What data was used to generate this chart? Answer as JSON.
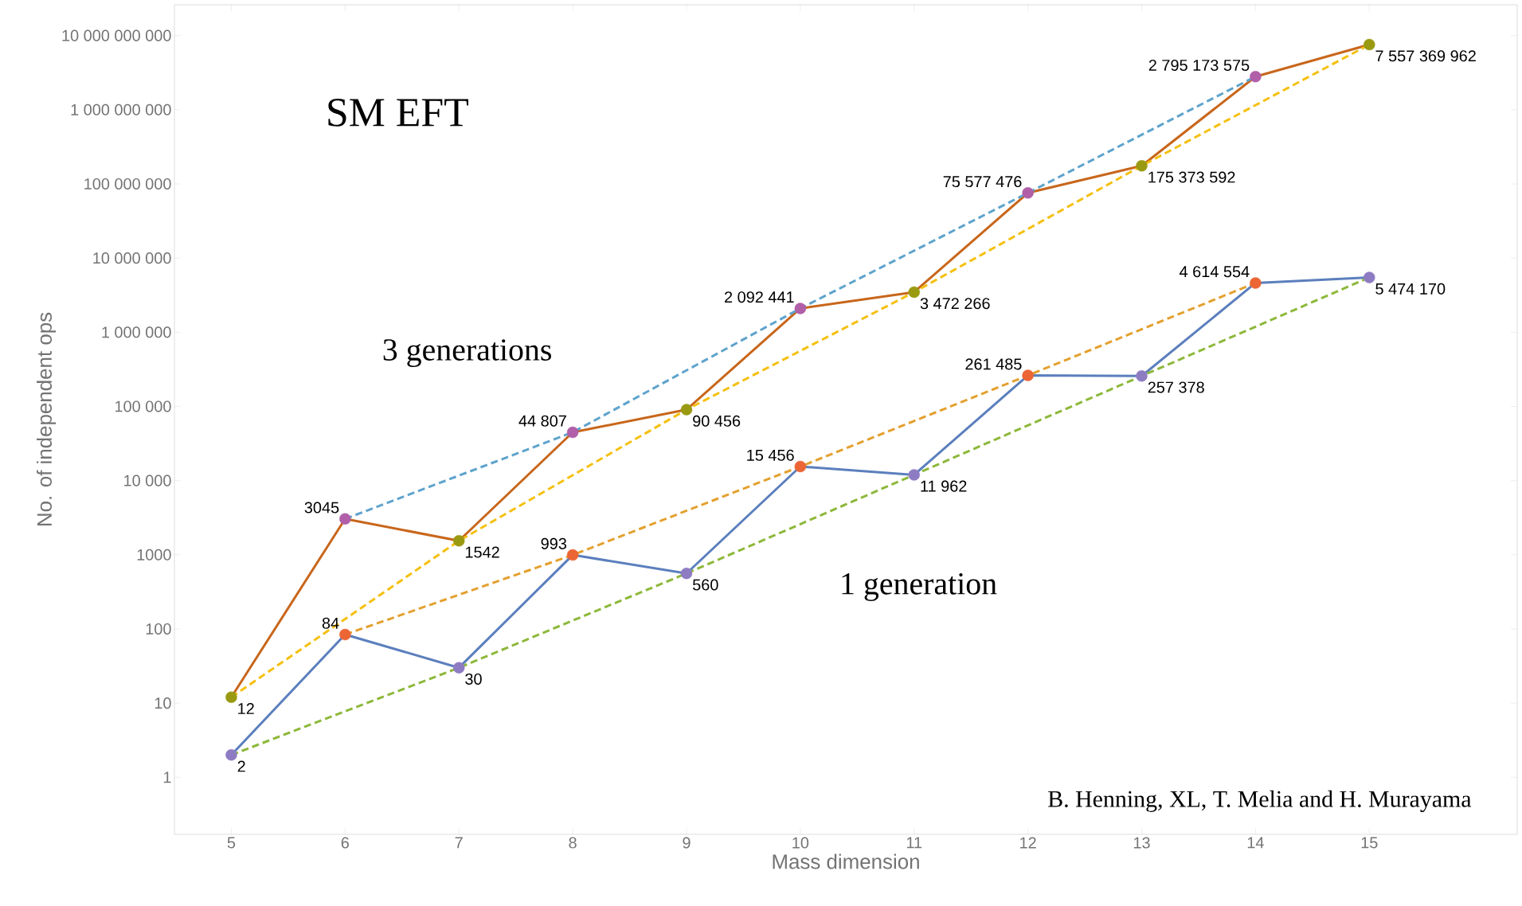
{
  "chart_data": {
    "type": "line",
    "xlabel": "Mass dimension",
    "ylabel": "No. of independent ops",
    "log": "y",
    "xlim": [
      4.5,
      16.3
    ],
    "xticks": [
      5,
      6,
      7,
      8,
      9,
      10,
      11,
      12,
      13,
      14,
      15
    ],
    "ylim": [
      0.17,
      26000000000
    ],
    "yticks": [
      1,
      10,
      100,
      1000,
      {
        "value": 10000,
        "label": "10 000"
      },
      {
        "value": 100000,
        "label": "100 000"
      },
      {
        "value": 1000000,
        "label": "1 000 000"
      },
      {
        "value": 10000000,
        "label": "10 000 000"
      },
      {
        "value": 100000000,
        "label": "100 000 000"
      },
      {
        "value": 1000000000,
        "label": "1 000 000 000"
      },
      {
        "value": 10000000000,
        "label": "10 000 000 000"
      }
    ],
    "series": [
      {
        "color": "#c8661b",
        "line_style": "solid",
        "x": [
          5,
          6,
          7,
          8,
          9,
          10,
          11,
          12,
          13,
          14,
          15
        ],
        "values": [
          12,
          3045,
          1542,
          44807,
          90456,
          2092441,
          3472266,
          75577476,
          175373592,
          2795173575,
          7557369962
        ]
      },
      {
        "color": "#5b7fbd",
        "line_style": "solid",
        "x": [
          5,
          6,
          7,
          8,
          9,
          10,
          11,
          12,
          13,
          14,
          15
        ],
        "values": [
          2,
          84,
          30,
          993,
          560,
          15456,
          11962,
          261485,
          257378,
          4614554,
          5474170
        ]
      },
      {
        "color": "#5ea3cc",
        "line_style": "dashed",
        "x": [
          6,
          8,
          10,
          12,
          14
        ],
        "values": [
          3045,
          44807,
          2092441,
          75577476,
          2795173575
        ]
      },
      {
        "color": "#f5c010",
        "line_style": "dashed",
        "x": [
          5,
          7,
          9,
          11,
          13,
          15
        ],
        "values": [
          12,
          1542,
          90456,
          3472266,
          175373592,
          7557369962
        ]
      },
      {
        "color": "#e3a02e",
        "line_style": "dashed",
        "x": [
          6,
          8,
          10,
          12,
          14
        ],
        "values": [
          84,
          993,
          15456,
          261485,
          4614554
        ]
      },
      {
        "color": "#8db83a",
        "line_style": "dashed",
        "x": [
          5,
          7,
          9,
          11,
          13,
          15
        ],
        "values": [
          2,
          30,
          560,
          11962,
          257378,
          5474170
        ]
      },
      {
        "type": "scatter",
        "color": "#b05fa8",
        "marker": "circle",
        "x": [
          6,
          8,
          10,
          12,
          14
        ],
        "values": [
          3045,
          44807,
          2092441,
          75577476,
          2795173575
        ],
        "value_labels": [
          "3045",
          "44 807",
          "2 092 441",
          "75 577 476",
          "2 795 173 575"
        ]
      },
      {
        "type": "scatter",
        "color": "#9a9a12",
        "marker": "circle",
        "x": [
          5,
          7,
          9,
          11,
          13,
          15
        ],
        "values": [
          12,
          1542,
          90456,
          3472266,
          175373592,
          7557369962
        ],
        "value_labels": [
          "12",
          "1542",
          "90 456",
          "3 472 266",
          "175 373 592",
          "7 557 369 962"
        ]
      },
      {
        "type": "scatter",
        "color": "#ec6535",
        "marker": "circle",
        "x": [
          6,
          8,
          10,
          12,
          14
        ],
        "values": [
          84,
          993,
          15456,
          261485,
          4614554
        ],
        "value_labels": [
          "84",
          "993",
          "15 456",
          "261 485",
          "4 614 554"
        ]
      },
      {
        "type": "scatter",
        "color": "#8e7cc3",
        "marker": "circle",
        "x": [
          5,
          7,
          9,
          11,
          13,
          15
        ],
        "values": [
          2,
          30,
          560,
          11962,
          257378,
          5474170
        ],
        "value_labels": [
          "2",
          "30",
          "560",
          "11 962",
          "257 378",
          "5 474 170"
        ]
      }
    ],
    "annotations": [
      "SM EFT",
      "3 generations",
      "1 generation",
      "B. Henning, XL, T. Melia and H. Murayama"
    ]
  }
}
